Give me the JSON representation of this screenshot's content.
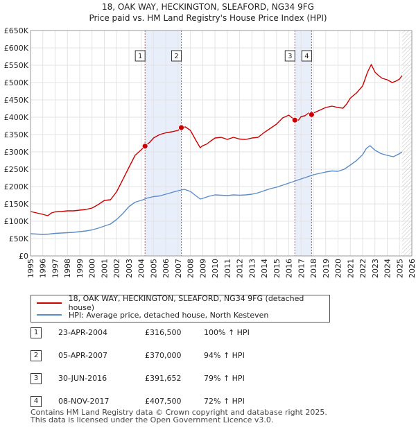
{
  "chart_data": {
    "type": "line",
    "title": "18, OAK WAY, HECKINGTON, SLEAFORD, NG34 9FG",
    "subtitle": "Price paid vs. HM Land Registry's House Price Index (HPI)",
    "xlim": [
      1995,
      2026
    ],
    "ylim": [
      0,
      650000
    ],
    "x_ticks": [
      "1995",
      "1996",
      "1997",
      "1998",
      "1999",
      "2000",
      "2001",
      "2002",
      "2003",
      "2004",
      "2005",
      "2006",
      "2007",
      "2008",
      "2009",
      "2010",
      "2011",
      "2012",
      "2013",
      "2014",
      "2015",
      "2016",
      "2017",
      "2018",
      "2019",
      "2020",
      "2021",
      "2022",
      "2023",
      "2024",
      "2025",
      "2026"
    ],
    "y_ticks": [
      {
        "value": 0,
        "label": "£0"
      },
      {
        "value": 50000,
        "label": "£50K"
      },
      {
        "value": 100000,
        "label": "£100K"
      },
      {
        "value": 150000,
        "label": "£150K"
      },
      {
        "value": 200000,
        "label": "£200K"
      },
      {
        "value": 250000,
        "label": "£250K"
      },
      {
        "value": 300000,
        "label": "£300K"
      },
      {
        "value": 350000,
        "label": "£350K"
      },
      {
        "value": 400000,
        "label": "£400K"
      },
      {
        "value": 450000,
        "label": "£450K"
      },
      {
        "value": 500000,
        "label": "£500K"
      },
      {
        "value": 550000,
        "label": "£550K"
      },
      {
        "value": 600000,
        "label": "£600K"
      },
      {
        "value": 650000,
        "label": "£650K"
      }
    ],
    "shaded_ranges": [
      [
        2004.31,
        2007.26
      ],
      [
        2016.49,
        2017.85
      ]
    ],
    "future_hatch_from": 2025.2,
    "series": [
      {
        "name": "18, OAK WAY, HECKINGTON, SLEAFORD, NG34 9FG (detached house)",
        "color": "#cc0000",
        "x": [
          1995,
          1995.5,
          1996,
          1996.4,
          1996.7,
          1997,
          1997.5,
          1998,
          1998.5,
          1999,
          1999.5,
          2000,
          2000.5,
          2001,
          2001.5,
          2002,
          2002.5,
          2003,
          2003.5,
          2004,
          2004.31,
          2004.7,
          2005,
          2005.5,
          2006,
          2006.5,
          2007,
          2007.26,
          2007.6,
          2008,
          2008.5,
          2008.8,
          2009,
          2009.3,
          2009.6,
          2010,
          2010.5,
          2011,
          2011.5,
          2012,
          2012.5,
          2013,
          2013.5,
          2014,
          2014.5,
          2015,
          2015.5,
          2016,
          2016.49,
          2016.8,
          2017,
          2017.3,
          2017.6,
          2017.85,
          2018,
          2018.5,
          2019,
          2019.5,
          2020,
          2020.4,
          2020.7,
          2021,
          2021.5,
          2022,
          2022.4,
          2022.7,
          2023,
          2023.3,
          2023.6,
          2024,
          2024.4,
          2024.7,
          2025,
          2025.2
        ],
        "y": [
          128000,
          124000,
          120000,
          116000,
          124000,
          127000,
          128000,
          130000,
          130000,
          132000,
          134000,
          138000,
          148000,
          160000,
          162000,
          185000,
          220000,
          255000,
          290000,
          306000,
          316500,
          328000,
          340000,
          350000,
          355000,
          358000,
          362000,
          370000,
          372000,
          362000,
          330000,
          312000,
          318000,
          322000,
          330000,
          340000,
          342000,
          336000,
          342000,
          337000,
          336000,
          340000,
          342000,
          356000,
          368000,
          380000,
          398000,
          406000,
          391652,
          392000,
          402000,
          404000,
          412000,
          407500,
          412000,
          420000,
          428000,
          432000,
          428000,
          426000,
          438000,
          455000,
          470000,
          490000,
          530000,
          552000,
          530000,
          520000,
          512000,
          508000,
          500000,
          504000,
          510000,
          520000
        ]
      },
      {
        "name": "HPI: Average price, detached house, North Kesteven",
        "color": "#5b8cc8",
        "x": [
          1995,
          1995.5,
          1996,
          1996.5,
          1997,
          1997.5,
          1998,
          1998.5,
          1999,
          1999.5,
          2000,
          2000.5,
          2001,
          2001.5,
          2002,
          2002.5,
          2003,
          2003.5,
          2004,
          2004.5,
          2005,
          2005.5,
          2006,
          2006.5,
          2007,
          2007.5,
          2008,
          2008.5,
          2008.8,
          2009,
          2009.5,
          2010,
          2010.5,
          2011,
          2011.5,
          2012,
          2012.5,
          2013,
          2013.5,
          2014,
          2014.5,
          2015,
          2015.5,
          2016,
          2016.5,
          2017,
          2017.5,
          2018,
          2018.5,
          2019,
          2019.5,
          2020,
          2020.5,
          2021,
          2021.5,
          2022,
          2022.3,
          2022.6,
          2023,
          2023.5,
          2024,
          2024.5,
          2025,
          2025.2
        ],
        "y": [
          64000,
          63000,
          62000,
          63000,
          65000,
          66000,
          67000,
          68000,
          70000,
          72000,
          75000,
          80000,
          86000,
          92000,
          105000,
          122000,
          142000,
          155000,
          160000,
          167000,
          171000,
          173000,
          178000,
          183000,
          188000,
          192000,
          186000,
          172000,
          164000,
          166000,
          172000,
          176000,
          175000,
          174000,
          176000,
          175000,
          176000,
          178000,
          182000,
          188000,
          194000,
          198000,
          204000,
          210000,
          216000,
          222000,
          228000,
          234000,
          238000,
          242000,
          245000,
          244000,
          250000,
          262000,
          275000,
          292000,
          310000,
          318000,
          305000,
          295000,
          290000,
          286000,
          295000,
          300000
        ]
      }
    ],
    "sales": [
      {
        "marker": "1",
        "date": "23-APR-2004",
        "x": 2004.31,
        "price": 316500,
        "price_label": "£316,500",
        "hpi_label": "100% ↑ HPI"
      },
      {
        "marker": "2",
        "date": "05-APR-2007",
        "x": 2007.26,
        "price": 370000,
        "price_label": "£370,000",
        "hpi_label": "94% ↑ HPI"
      },
      {
        "marker": "3",
        "date": "30-JUN-2016",
        "x": 2016.49,
        "price": 391652,
        "price_label": "£391,652",
        "hpi_label": "79% ↑ HPI"
      },
      {
        "marker": "4",
        "date": "08-NOV-2017",
        "x": 2017.85,
        "price": 407500,
        "price_label": "£407,500",
        "hpi_label": "72% ↑ HPI"
      }
    ]
  },
  "footer": {
    "line1": "Contains HM Land Registry data © Crown copyright and database right 2025.",
    "line2": "This data is licensed under the Open Government Licence v3.0."
  }
}
